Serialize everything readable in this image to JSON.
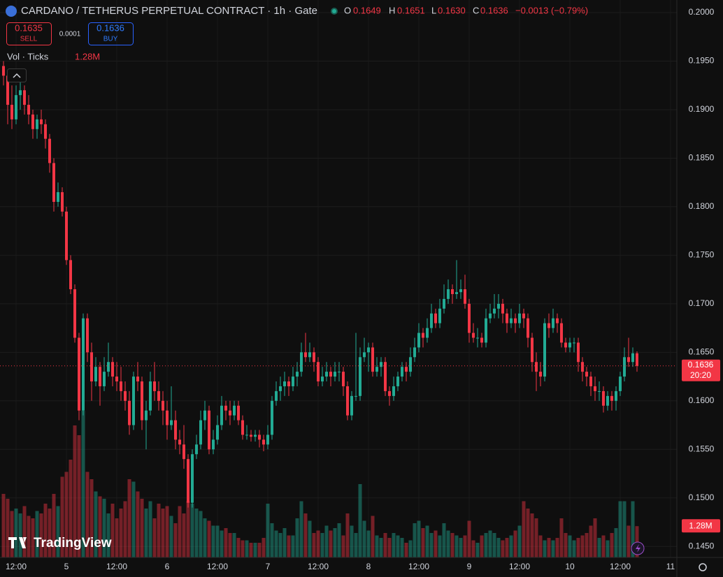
{
  "chart_data": {
    "type": "candlestick",
    "title": "CARDANO / TETHERUS PERPETUAL CONTRACT · 1h · Gate",
    "ohlc_legend": {
      "o_label": "O",
      "o": "0.1649",
      "h_label": "H",
      "h": "0.1651",
      "l_label": "L",
      "l": "0.1630",
      "c_label": "C",
      "c": "0.1636",
      "change": "−0.0013 (−0.79%)"
    },
    "trade": {
      "sell_price": "0.1635",
      "sell": "SELL",
      "spread": "0.0001",
      "buy_price": "0.1636",
      "buy": "BUY"
    },
    "volume_legend": {
      "label": "Vol · Ticks",
      "value": "1.28M"
    },
    "price_badge": {
      "price": "0.1636",
      "countdown": "20:20"
    },
    "volume_badge": "1.28M",
    "logo": "TradingView",
    "colors": {
      "up": "#22ab94",
      "down": "#f23645"
    },
    "ylim": [
      0.143,
      0.2013
    ],
    "yticks": [
      {
        "value": 0.2,
        "label": "0.2000"
      },
      {
        "value": 0.195,
        "label": "0.1950"
      },
      {
        "value": 0.19,
        "label": "0.1900"
      },
      {
        "value": 0.185,
        "label": "0.1850"
      },
      {
        "value": 0.18,
        "label": "0.1800"
      },
      {
        "value": 0.175,
        "label": "0.1750"
      },
      {
        "value": 0.17,
        "label": "0.1700"
      },
      {
        "value": 0.165,
        "label": "0.1650"
      },
      {
        "value": 0.16,
        "label": "0.1600"
      },
      {
        "value": 0.155,
        "label": "0.1550"
      },
      {
        "value": 0.15,
        "label": "0.1500"
      },
      {
        "value": 0.145,
        "label": "0.1450"
      }
    ],
    "grid": true,
    "categories": [
      null,
      null,
      null,
      "12:00",
      null,
      null,
      null,
      null,
      null,
      null,
      null,
      null,
      null,
      null,
      null,
      "5",
      null,
      null,
      null,
      null,
      null,
      null,
      null,
      null,
      null,
      null,
      null,
      "12:00",
      null,
      null,
      null,
      null,
      null,
      null,
      null,
      null,
      null,
      null,
      null,
      "6",
      null,
      null,
      null,
      null,
      null,
      null,
      null,
      null,
      null,
      null,
      null,
      "12:00",
      null,
      null,
      null,
      null,
      null,
      null,
      null,
      null,
      null,
      null,
      null,
      "7",
      null,
      null,
      null,
      null,
      null,
      null,
      null,
      null,
      null,
      null,
      null,
      "12:00",
      null,
      null,
      null,
      null,
      null,
      null,
      null,
      null,
      null,
      null,
      null,
      "8",
      null,
      null,
      null,
      null,
      null,
      null,
      null,
      null,
      null,
      null,
      null,
      "12:00",
      null,
      null,
      null,
      null,
      null,
      null,
      null,
      null,
      null,
      null,
      null,
      "9",
      null,
      null,
      null,
      null,
      null,
      null,
      null,
      null,
      null,
      null,
      null,
      "12:00",
      null,
      null,
      null,
      null,
      null,
      null,
      null,
      null,
      null,
      null,
      null,
      "10",
      null,
      null,
      null,
      null,
      null,
      null,
      null,
      null,
      null,
      null,
      null,
      "12:00",
      null,
      null,
      null,
      null,
      null,
      null,
      null,
      null,
      null,
      null,
      null,
      "11"
    ],
    "ohlc": [
      [
        0.1945,
        0.195,
        0.1925,
        0.1935
      ],
      [
        0.1935,
        0.194,
        0.1885,
        0.1905
      ],
      [
        0.1905,
        0.1925,
        0.188,
        0.189
      ],
      [
        0.189,
        0.1925,
        0.1885,
        0.1915
      ],
      [
        0.1915,
        0.193,
        0.19,
        0.192
      ],
      [
        0.192,
        0.1925,
        0.1895,
        0.1905
      ],
      [
        0.1905,
        0.1915,
        0.1885,
        0.1895
      ],
      [
        0.1895,
        0.19,
        0.187,
        0.188
      ],
      [
        0.188,
        0.1895,
        0.187,
        0.189
      ],
      [
        0.189,
        0.19,
        0.1875,
        0.1885
      ],
      [
        0.1885,
        0.189,
        0.186,
        0.187
      ],
      [
        0.187,
        0.1875,
        0.1835,
        0.1845
      ],
      [
        0.1845,
        0.185,
        0.1795,
        0.1805
      ],
      [
        0.1805,
        0.1825,
        0.18,
        0.1815
      ],
      [
        0.1815,
        0.182,
        0.179,
        0.1795
      ],
      [
        0.1795,
        0.18,
        0.174,
        0.1745
      ],
      [
        0.1745,
        0.175,
        0.171,
        0.1715
      ],
      [
        0.1715,
        0.172,
        0.166,
        0.1665
      ],
      [
        0.1665,
        0.167,
        0.158,
        0.159
      ],
      [
        0.159,
        0.169,
        0.1585,
        0.1685
      ],
      [
        0.1685,
        0.169,
        0.164,
        0.165
      ],
      [
        0.165,
        0.166,
        0.16,
        0.162
      ],
      [
        0.162,
        0.1645,
        0.1615,
        0.1635
      ],
      [
        0.1635,
        0.164,
        0.1595,
        0.1615
      ],
      [
        0.1615,
        0.1645,
        0.161,
        0.163
      ],
      [
        0.163,
        0.166,
        0.1625,
        0.164
      ],
      [
        0.164,
        0.1645,
        0.1615,
        0.1625
      ],
      [
        0.1625,
        0.164,
        0.161,
        0.162
      ],
      [
        0.162,
        0.1635,
        0.16,
        0.161
      ],
      [
        0.161,
        0.162,
        0.159,
        0.16
      ],
      [
        0.16,
        0.161,
        0.1565,
        0.1575
      ],
      [
        0.1575,
        0.163,
        0.157,
        0.1625
      ],
      [
        0.1625,
        0.164,
        0.161,
        0.162
      ],
      [
        0.162,
        0.1625,
        0.157,
        0.158
      ],
      [
        0.158,
        0.16,
        0.155,
        0.159
      ],
      [
        0.159,
        0.163,
        0.1585,
        0.162
      ],
      [
        0.162,
        0.164,
        0.16,
        0.161
      ],
      [
        0.161,
        0.162,
        0.159,
        0.16
      ],
      [
        0.16,
        0.161,
        0.1575,
        0.159
      ],
      [
        0.159,
        0.16,
        0.156,
        0.1575
      ],
      [
        0.1575,
        0.1615,
        0.157,
        0.158
      ],
      [
        0.158,
        0.159,
        0.155,
        0.156
      ],
      [
        0.156,
        0.157,
        0.1545,
        0.1555
      ],
      [
        0.1555,
        0.1575,
        0.153,
        0.154
      ],
      [
        0.154,
        0.1545,
        0.149,
        0.1495
      ],
      [
        0.1495,
        0.155,
        0.149,
        0.1545
      ],
      [
        0.1545,
        0.1565,
        0.154,
        0.1555
      ],
      [
        0.1555,
        0.159,
        0.155,
        0.158
      ],
      [
        0.158,
        0.16,
        0.157,
        0.159
      ],
      [
        0.159,
        0.1595,
        0.1545,
        0.155
      ],
      [
        0.155,
        0.157,
        0.1545,
        0.156
      ],
      [
        0.156,
        0.1585,
        0.1555,
        0.1575
      ],
      [
        0.1575,
        0.1605,
        0.157,
        0.1595
      ],
      [
        0.1595,
        0.16,
        0.158,
        0.159
      ],
      [
        0.159,
        0.16,
        0.1575,
        0.1585
      ],
      [
        0.1585,
        0.16,
        0.158,
        0.1595
      ],
      [
        0.1595,
        0.16,
        0.1575,
        0.158
      ],
      [
        0.158,
        0.1585,
        0.156,
        0.1565
      ],
      [
        0.1565,
        0.1575,
        0.156,
        0.1565
      ],
      [
        0.1565,
        0.157,
        0.1558,
        0.1563
      ],
      [
        0.1563,
        0.157,
        0.1558,
        0.1565
      ],
      [
        0.1565,
        0.157,
        0.1552,
        0.156
      ],
      [
        0.156,
        0.1565,
        0.1548,
        0.1555
      ],
      [
        0.1555,
        0.1575,
        0.155,
        0.1565
      ],
      [
        0.1565,
        0.1605,
        0.156,
        0.16
      ],
      [
        0.16,
        0.162,
        0.1595,
        0.161
      ],
      [
        0.161,
        0.1625,
        0.16,
        0.1615
      ],
      [
        0.1615,
        0.163,
        0.1605,
        0.162
      ],
      [
        0.162,
        0.1625,
        0.1605,
        0.1615
      ],
      [
        0.1615,
        0.1635,
        0.161,
        0.1625
      ],
      [
        0.1625,
        0.164,
        0.1615,
        0.163
      ],
      [
        0.163,
        0.166,
        0.1625,
        0.165
      ],
      [
        0.165,
        0.167,
        0.164,
        0.1645
      ],
      [
        0.1645,
        0.166,
        0.164,
        0.165
      ],
      [
        0.165,
        0.1655,
        0.163,
        0.164
      ],
      [
        0.164,
        0.1645,
        0.1615,
        0.162
      ],
      [
        0.162,
        0.1635,
        0.1615,
        0.1625
      ],
      [
        0.1625,
        0.164,
        0.162,
        0.163
      ],
      [
        0.163,
        0.1635,
        0.1615,
        0.1625
      ],
      [
        0.1625,
        0.164,
        0.162,
        0.163
      ],
      [
        0.163,
        0.164,
        0.162,
        0.163
      ],
      [
        0.163,
        0.1635,
        0.1605,
        0.1615
      ],
      [
        0.1615,
        0.162,
        0.158,
        0.1585
      ],
      [
        0.1585,
        0.161,
        0.158,
        0.1605
      ],
      [
        0.1605,
        0.167,
        0.16,
        0.1605
      ],
      [
        0.1605,
        0.1655,
        0.16,
        0.1645
      ],
      [
        0.1645,
        0.1665,
        0.164,
        0.165
      ],
      [
        0.165,
        0.166,
        0.163,
        0.1655
      ],
      [
        0.1655,
        0.166,
        0.1625,
        0.163
      ],
      [
        0.163,
        0.1645,
        0.1625,
        0.1635
      ],
      [
        0.1635,
        0.1645,
        0.1625,
        0.164
      ],
      [
        0.164,
        0.1645,
        0.1605,
        0.161
      ],
      [
        0.161,
        0.1615,
        0.1595,
        0.1605
      ],
      [
        0.1605,
        0.1625,
        0.16,
        0.1615
      ],
      [
        0.1615,
        0.163,
        0.161,
        0.1625
      ],
      [
        0.1625,
        0.164,
        0.162,
        0.1635
      ],
      [
        0.1635,
        0.164,
        0.162,
        0.163
      ],
      [
        0.163,
        0.1655,
        0.1625,
        0.1645
      ],
      [
        0.1645,
        0.1665,
        0.164,
        0.1655
      ],
      [
        0.1655,
        0.168,
        0.165,
        0.167
      ],
      [
        0.167,
        0.1675,
        0.1655,
        0.1665
      ],
      [
        0.1665,
        0.1685,
        0.166,
        0.1675
      ],
      [
        0.1675,
        0.17,
        0.167,
        0.169
      ],
      [
        0.169,
        0.1695,
        0.1675,
        0.168
      ],
      [
        0.168,
        0.1705,
        0.1675,
        0.1695
      ],
      [
        0.1695,
        0.172,
        0.169,
        0.1705
      ],
      [
        0.1705,
        0.1725,
        0.17,
        0.1715
      ],
      [
        0.1715,
        0.172,
        0.17,
        0.171
      ],
      [
        0.171,
        0.1745,
        0.1705,
        0.1712
      ],
      [
        0.1712,
        0.1725,
        0.1705,
        0.1715
      ],
      [
        0.1715,
        0.173,
        0.1695,
        0.17
      ],
      [
        0.17,
        0.1705,
        0.166,
        0.167
      ],
      [
        0.167,
        0.168,
        0.166,
        0.1665
      ],
      [
        0.1665,
        0.1675,
        0.1655,
        0.1665
      ],
      [
        0.1665,
        0.167,
        0.1655,
        0.166
      ],
      [
        0.166,
        0.1695,
        0.1655,
        0.1685
      ],
      [
        0.1685,
        0.17,
        0.168,
        0.169
      ],
      [
        0.169,
        0.171,
        0.1685,
        0.1695
      ],
      [
        0.1695,
        0.171,
        0.1685,
        0.17
      ],
      [
        0.17,
        0.1705,
        0.168,
        0.169
      ],
      [
        0.169,
        0.1695,
        0.167,
        0.168
      ],
      [
        0.168,
        0.1695,
        0.1675,
        0.1685
      ],
      [
        0.1685,
        0.169,
        0.167,
        0.168
      ],
      [
        0.168,
        0.17,
        0.1675,
        0.169
      ],
      [
        0.169,
        0.1695,
        0.1675,
        0.1685
      ],
      [
        0.1685,
        0.169,
        0.1655,
        0.1665
      ],
      [
        0.1665,
        0.167,
        0.163,
        0.164
      ],
      [
        0.164,
        0.165,
        0.161,
        0.163
      ],
      [
        0.163,
        0.164,
        0.1615,
        0.1625
      ],
      [
        0.1625,
        0.1685,
        0.162,
        0.168
      ],
      [
        0.168,
        0.169,
        0.1665,
        0.1675
      ],
      [
        0.1675,
        0.1695,
        0.167,
        0.1685
      ],
      [
        0.1685,
        0.169,
        0.167,
        0.168
      ],
      [
        0.168,
        0.1685,
        0.1655,
        0.166
      ],
      [
        0.166,
        0.1665,
        0.165,
        0.1655
      ],
      [
        0.1655,
        0.1665,
        0.165,
        0.166
      ],
      [
        0.166,
        0.1665,
        0.165,
        0.166
      ],
      [
        0.166,
        0.1665,
        0.163,
        0.164
      ],
      [
        0.164,
        0.1645,
        0.162,
        0.163
      ],
      [
        0.163,
        0.1635,
        0.1615,
        0.1625
      ],
      [
        0.1625,
        0.163,
        0.1605,
        0.1615
      ],
      [
        0.1615,
        0.1625,
        0.16,
        0.161
      ],
      [
        0.161,
        0.162,
        0.16,
        0.161
      ],
      [
        0.161,
        0.1615,
        0.1588,
        0.1595
      ],
      [
        0.1595,
        0.161,
        0.159,
        0.1605
      ],
      [
        0.1605,
        0.161,
        0.159,
        0.16
      ],
      [
        0.16,
        0.1615,
        0.159,
        0.161
      ],
      [
        0.161,
        0.163,
        0.1605,
        0.1625
      ],
      [
        0.1625,
        0.1655,
        0.162,
        0.1645
      ],
      [
        0.1645,
        0.1665,
        0.1635,
        0.164
      ],
      [
        0.164,
        0.1655,
        0.1635,
        0.1649
      ],
      [
        0.1649,
        0.1651,
        0.163,
        0.1636
      ],
      null,
      null,
      null,
      null,
      null,
      null,
      null,
      null
    ],
    "volume": [
      2.6,
      2.4,
      1.9,
      2.0,
      1.8,
      2.1,
      1.7,
      1.6,
      1.9,
      1.8,
      2.2,
      2.0,
      2.6,
      2.1,
      3.3,
      3.5,
      4.0,
      5.4,
      5.0,
      6.0,
      3.5,
      3.2,
      2.7,
      2.5,
      2.4,
      1.8,
      2.2,
      1.6,
      2.0,
      2.3,
      3.2,
      3.1,
      2.7,
      2.4,
      2.0,
      2.3,
      1.6,
      2.2,
      2.0,
      2.1,
      1.7,
      1.4,
      2.1,
      1.8,
      2.3,
      2.2,
      2.0,
      1.9,
      1.6,
      1.5,
      1.3,
      1.3,
      1.1,
      1.2,
      1.0,
      1.0,
      0.8,
      0.7,
      0.7,
      0.6,
      0.6,
      0.6,
      0.8,
      2.2,
      1.4,
      1.1,
      1.0,
      1.2,
      0.9,
      0.9,
      1.6,
      2.3,
      1.8,
      1.5,
      1.0,
      1.1,
      1.0,
      1.3,
      1.1,
      1.2,
      1.4,
      0.9,
      1.8,
      1.3,
      1.0,
      3.0,
      1.5,
      1.1,
      1.7,
      0.9,
      0.8,
      1.0,
      0.8,
      1.0,
      0.9,
      0.8,
      0.6,
      0.7,
      1.4,
      1.5,
      1.2,
      1.3,
      1.0,
      1.1,
      0.9,
      1.4,
      1.1,
      1.0,
      0.9,
      0.8,
      0.9,
      1.5,
      0.7,
      0.6,
      0.9,
      1.0,
      1.1,
      1.0,
      0.8,
      0.7,
      0.8,
      0.9,
      1.1,
      1.3,
      2.3,
      2.0,
      1.8,
      1.6,
      0.9,
      0.7,
      0.8,
      0.7,
      0.8,
      1.6,
      1.0,
      0.9,
      0.7,
      0.8,
      0.9,
      1.0,
      1.3,
      1.6,
      0.8,
      0.9,
      0.7,
      1.0,
      1.2,
      2.3,
      2.3,
      1.3,
      2.3,
      1.28,
      null,
      null,
      null,
      null,
      null,
      null,
      null,
      null
    ]
  }
}
